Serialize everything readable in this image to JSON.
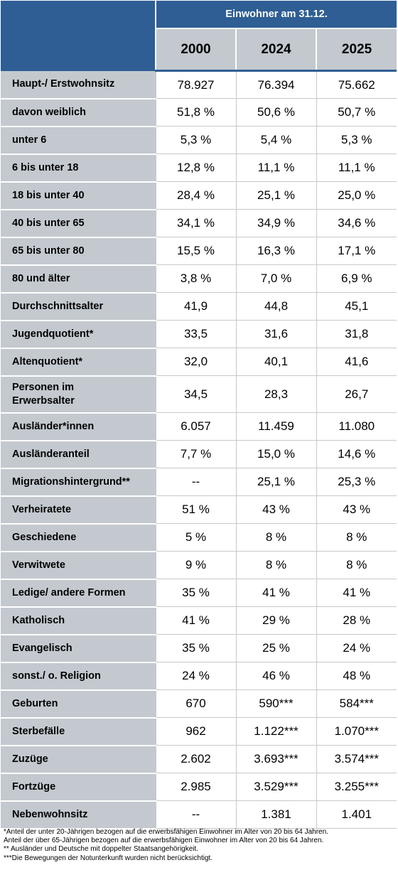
{
  "header": {
    "group_title": "Einwohner am 31.12.",
    "years": [
      "2000",
      "2024",
      "2025"
    ]
  },
  "rows": [
    {
      "label": "Haupt-/ Erstwohnsitz",
      "values": [
        "78.927",
        "76.394",
        "75.662"
      ]
    },
    {
      "label": "davon weiblich",
      "values": [
        "51,8 %",
        "50,6 %",
        "50,7 %"
      ]
    },
    {
      "label": "unter 6",
      "values": [
        "5,3 %",
        "5,4 %",
        "5,3 %"
      ]
    },
    {
      "label": "6 bis unter 18",
      "values": [
        "12,8 %",
        "11,1 %",
        "11,1 %"
      ]
    },
    {
      "label": "18 bis unter 40",
      "values": [
        "28,4 %",
        "25,1 %",
        "25,0 %"
      ]
    },
    {
      "label": "40 bis unter 65",
      "values": [
        "34,1 %",
        "34,9 %",
        "34,6 %"
      ]
    },
    {
      "label": "65 bis unter 80",
      "values": [
        "15,5 %",
        "16,3 %",
        "17,1 %"
      ]
    },
    {
      "label": "80 und älter",
      "values": [
        "3,8 %",
        "7,0 %",
        "6,9 %"
      ]
    },
    {
      "label": "Durchschnittsalter",
      "values": [
        "41,9",
        "44,8",
        "45,1"
      ]
    },
    {
      "label": "Jugendquotient*",
      "values": [
        "33,5",
        "31,6",
        "31,8"
      ]
    },
    {
      "label": "Altenquotient*",
      "values": [
        "32,0",
        "40,1",
        "41,6"
      ]
    },
    {
      "label": "Personen im Erwerbsalter",
      "values": [
        "34,5",
        "28,3",
        "26,7"
      ]
    },
    {
      "label": "Ausländer*innen",
      "values": [
        "6.057",
        "11.459",
        "11.080"
      ]
    },
    {
      "label": "Ausländeranteil",
      "values": [
        "7,7 %",
        "15,0 %",
        "14,6 %"
      ]
    },
    {
      "label": "Migrationshintergrund**",
      "values": [
        "--",
        "25,1 %",
        "25,3 %"
      ]
    },
    {
      "label": "Verheiratete",
      "values": [
        "51 %",
        "43 %",
        "43 %"
      ]
    },
    {
      "label": "Geschiedene",
      "values": [
        "5 %",
        "8 %",
        "8 %"
      ]
    },
    {
      "label": "Verwitwete",
      "values": [
        "9 %",
        "8 %",
        "8 %"
      ]
    },
    {
      "label": "Ledige/ andere Formen",
      "values": [
        "35 %",
        "41 %",
        "41 %"
      ]
    },
    {
      "label": "Katholisch",
      "values": [
        "41 %",
        "29 %",
        "28 %"
      ]
    },
    {
      "label": "Evangelisch",
      "values": [
        "35 %",
        "25 %",
        "24 %"
      ]
    },
    {
      "label": "sonst./ o. Religion",
      "values": [
        "24 %",
        "46 %",
        "48 %"
      ]
    },
    {
      "label": "Geburten",
      "values": [
        "670",
        "590***",
        "584***"
      ]
    },
    {
      "label": "Sterbefälle",
      "values": [
        "962",
        "1.122***",
        "1.070***"
      ]
    },
    {
      "label": "Zuzüge",
      "values": [
        "2.602",
        "3.693***",
        "3.574***"
      ]
    },
    {
      "label": "Fortzüge",
      "values": [
        "2.985",
        "3.529***",
        "3.255***"
      ]
    },
    {
      "label": "Nebenwohnsitz",
      "values": [
        "--",
        "1.381",
        "1.401"
      ]
    }
  ],
  "footnotes": [
    "*Anteil der unter 20-Jährigen bezogen auf die erwerbsfähigen Einwohner im Alter von 20 bis 64 Jahren.",
    "Anteil der über 65-Jährigen bezogen auf die erwerbsfähigen Einwohner im Alter von 20 bis 64 Jahren.",
    "** Ausländer und Deutsche mit doppelter Staatsangehörigkeit.",
    "***Die Bewegungen der Notunterkunft wurden nicht berücksichtigt."
  ],
  "colors": {
    "header_blue": "#2e5e94",
    "label_gray": "#c3c9cf"
  }
}
